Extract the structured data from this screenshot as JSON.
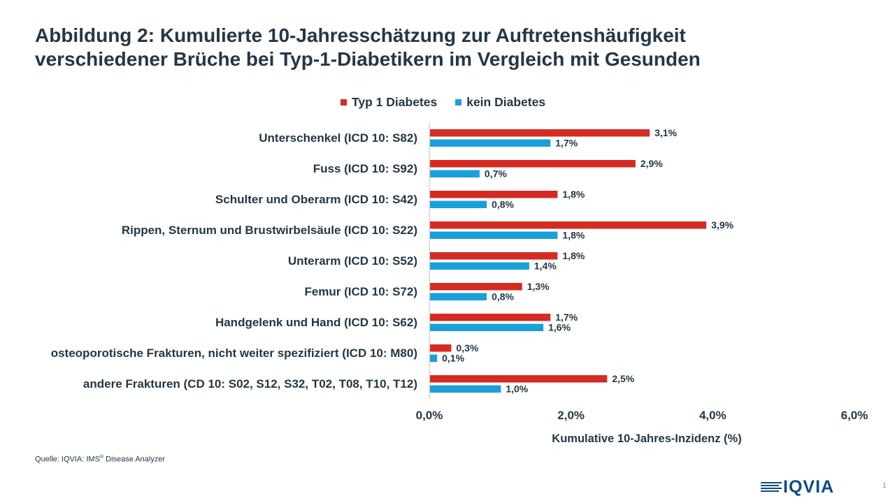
{
  "title_line1": "Abbildung 2: Kumulierte 10-Jahresschätzung zur Auftretenshäufigkeit",
  "title_line2": "verschiedener Brüche bei Typ-1-Diabetikern im Vergleich mit Gesunden",
  "source_prefix": "Quelle: IQVIA:  IMS",
  "source_reg": "®",
  "source_suffix": " Disease Analyzer",
  "logo_text": "IQVIA",
  "page_number": "1",
  "colors": {
    "type1": "#d52b23",
    "none": "#1aa0d9",
    "text": "#243746",
    "logo": "#0f4c81"
  },
  "chart_data": {
    "type": "bar",
    "orientation": "horizontal",
    "categories": [
      "Unterschenkel (ICD 10: S82)",
      "Fuss (ICD 10: S92)",
      "Schulter und Oberarm (ICD 10: S42)",
      "Rippen, Sternum und Brustwirbelsäule (ICD 10: S22)",
      "Unterarm (ICD 10: S52)",
      "Femur (ICD 10: S72)",
      "Handgelenk und Hand (ICD 10: S62)",
      "osteoporotische Frakturen, nicht weiter spezifiziert (ICD 10: M80)",
      "andere Frakturen (CD 10: S02, S12, S32, T02, T08, T10, T12)"
    ],
    "series": [
      {
        "name": "Typ 1 Diabetes",
        "color": "#d52b23",
        "values": [
          3.1,
          2.9,
          1.8,
          3.9,
          1.8,
          1.3,
          1.7,
          0.3,
          2.5
        ],
        "labels": [
          "3,1%",
          "2,9%",
          "1,8%",
          "3,9%",
          "1,8%",
          "1,3%",
          "1,7%",
          "0,3%",
          "2,5%"
        ]
      },
      {
        "name": "kein Diabetes",
        "color": "#1aa0d9",
        "values": [
          1.7,
          0.7,
          0.8,
          1.8,
          1.4,
          0.8,
          1.6,
          0.1,
          1.0
        ],
        "labels": [
          "1,7%",
          "0,7%",
          "0,8%",
          "1,8%",
          "1,4%",
          "0,8%",
          "1,6%",
          "0,1%",
          "1,0%"
        ]
      }
    ],
    "xlim": [
      0,
      6
    ],
    "xticks": [
      0,
      2,
      4,
      6
    ],
    "xtick_labels": [
      "0,0%",
      "2,0%",
      "4,0%",
      "6,0%"
    ],
    "xlabel": "Kumulative 10-Jahres-Inzidenz (%)",
    "legend": "top-center",
    "grid": false
  }
}
